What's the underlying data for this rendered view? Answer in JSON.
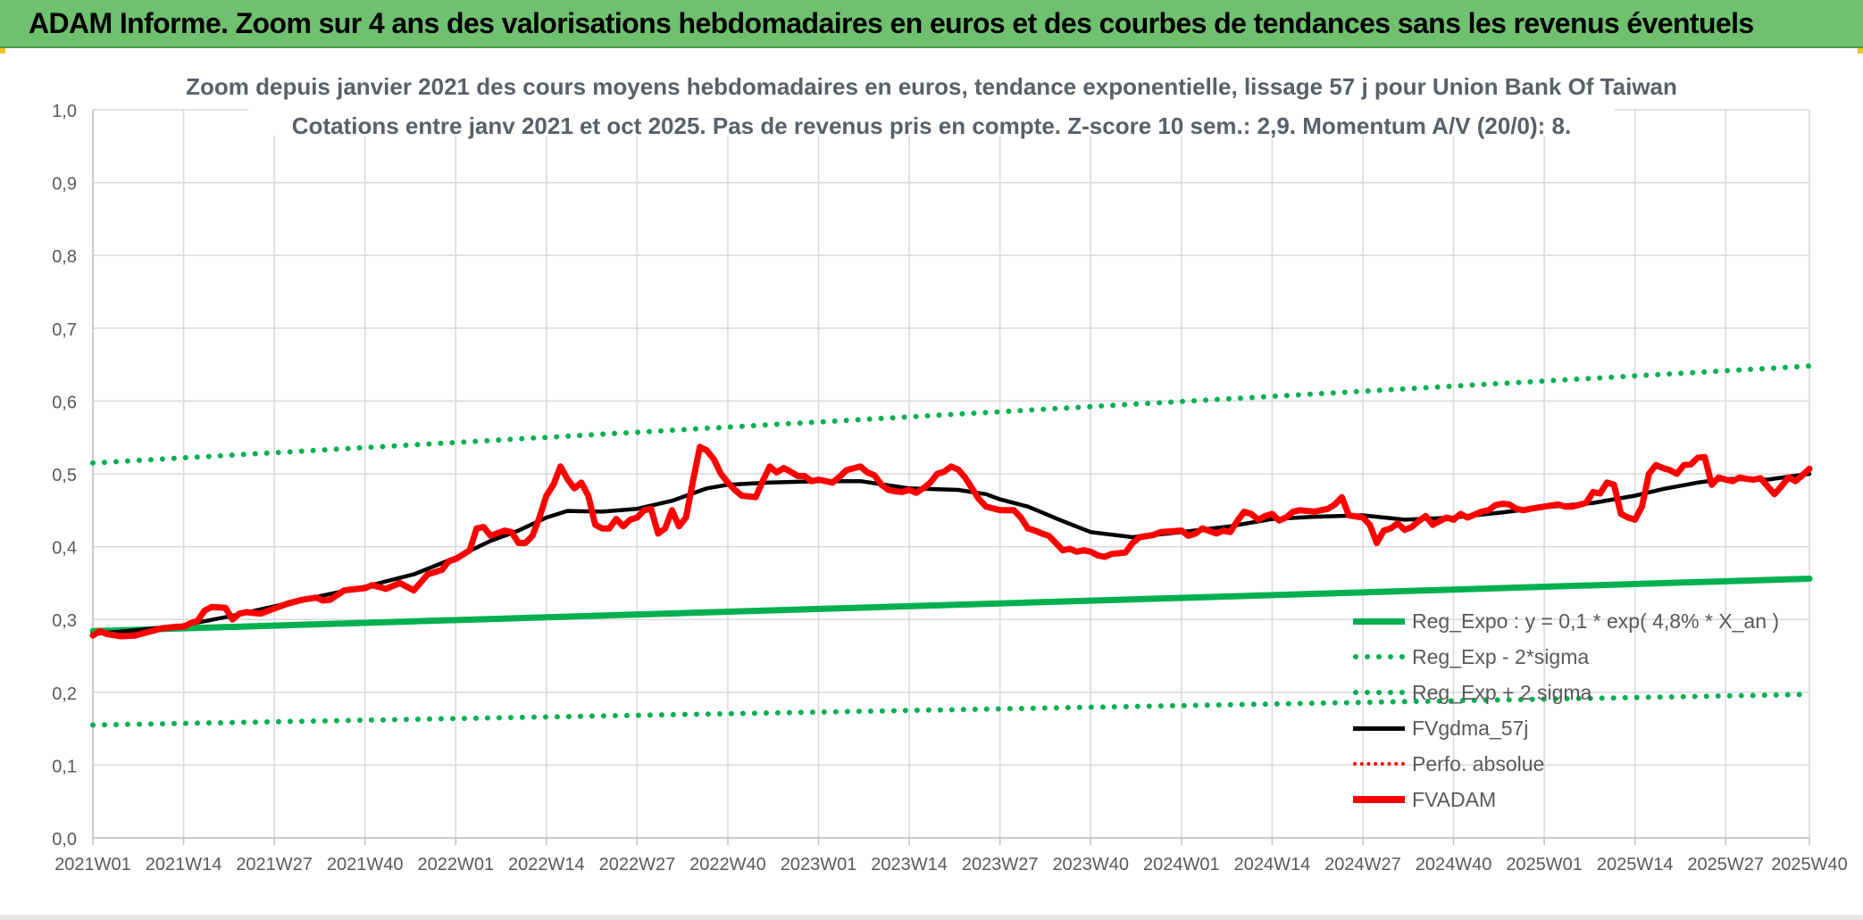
{
  "header": {
    "title": "ADAM Informe. Zoom sur 4 ans des valorisations hebdomadaires en euros et des courbes de tendances sans les revenus éventuels"
  },
  "chart_data": {
    "type": "line",
    "title": "Zoom depuis janvier 2021 des cours moyens hebdomadaires en euros, tendance exponentielle, lissage 57 j pour Union Bank Of Taiwan",
    "subtitle": "Cotations entre janv 2021 et oct 2025. Pas de revenus pris en compte. Z-score 10 sem.: 2,9. Momentum A/V (20/0): 8.",
    "xlabel": "",
    "ylabel": "",
    "ylim": [
      0,
      1
    ],
    "y_ticks": [
      "0,0",
      "0,1",
      "0,2",
      "0,3",
      "0,4",
      "0,5",
      "0,6",
      "0,7",
      "0,8",
      "0,9",
      "1,0"
    ],
    "x_range_weeks": [
      0,
      246
    ],
    "x_ticks": [
      {
        "label": "2021W01",
        "week": 0
      },
      {
        "label": "2021W14",
        "week": 13
      },
      {
        "label": "2021W27",
        "week": 26
      },
      {
        "label": "2021W40",
        "week": 39
      },
      {
        "label": "2022W01",
        "week": 52
      },
      {
        "label": "2022W14",
        "week": 65
      },
      {
        "label": "2022W27",
        "week": 78
      },
      {
        "label": "2022W40",
        "week": 91
      },
      {
        "label": "2023W01",
        "week": 104
      },
      {
        "label": "2023W14",
        "week": 117
      },
      {
        "label": "2023W27",
        "week": 130
      },
      {
        "label": "2023W40",
        "week": 143
      },
      {
        "label": "2024W01",
        "week": 156
      },
      {
        "label": "2024W14",
        "week": 169
      },
      {
        "label": "2024W27",
        "week": 182
      },
      {
        "label": "2024W40",
        "week": 195
      },
      {
        "label": "2025W01",
        "week": 208
      },
      {
        "label": "2025W14",
        "week": 221
      },
      {
        "label": "2025W27",
        "week": 234
      },
      {
        "label": "2025W40",
        "week": 246
      }
    ],
    "grid": true,
    "legend_position": "bottom-right",
    "series": [
      {
        "name": "Reg_Expo : y = 0,1 * exp( 4,8% *  X_an )",
        "style": "solid",
        "color": "#00b050",
        "points": [
          [
            0,
            0.284
          ],
          [
            246,
            0.356
          ]
        ]
      },
      {
        "name": "Reg_Exp - 2*sigma",
        "style": "dotted",
        "color": "#00b050",
        "points": [
          [
            0,
            0.155
          ],
          [
            246,
            0.197
          ]
        ]
      },
      {
        "name": "Reg_Exp + 2 sigma",
        "style": "dotted",
        "color": "#00b050",
        "points": [
          [
            0,
            0.515
          ],
          [
            246,
            0.648
          ]
        ]
      },
      {
        "name": "FVgdma_57j",
        "style": "solid",
        "color": "#000000",
        "points": [
          [
            0,
            0.28
          ],
          [
            6,
            0.285
          ],
          [
            13,
            0.292
          ],
          [
            20,
            0.305
          ],
          [
            26,
            0.318
          ],
          [
            33,
            0.333
          ],
          [
            39,
            0.345
          ],
          [
            46,
            0.362
          ],
          [
            52,
            0.385
          ],
          [
            57,
            0.408
          ],
          [
            61,
            0.422
          ],
          [
            65,
            0.44
          ],
          [
            68,
            0.449
          ],
          [
            73,
            0.448
          ],
          [
            78,
            0.452
          ],
          [
            83,
            0.463
          ],
          [
            88,
            0.48
          ],
          [
            91,
            0.485
          ],
          [
            97,
            0.488
          ],
          [
            104,
            0.49
          ],
          [
            110,
            0.49
          ],
          [
            117,
            0.48
          ],
          [
            124,
            0.478
          ],
          [
            128,
            0.472
          ],
          [
            130,
            0.465
          ],
          [
            134,
            0.455
          ],
          [
            139,
            0.435
          ],
          [
            143,
            0.42
          ],
          [
            149,
            0.413
          ],
          [
            156,
            0.42
          ],
          [
            163,
            0.428
          ],
          [
            169,
            0.438
          ],
          [
            175,
            0.441
          ],
          [
            182,
            0.443
          ],
          [
            188,
            0.437
          ],
          [
            195,
            0.44
          ],
          [
            202,
            0.447
          ],
          [
            208,
            0.454
          ],
          [
            215,
            0.46
          ],
          [
            221,
            0.47
          ],
          [
            225,
            0.479
          ],
          [
            230,
            0.488
          ],
          [
            234,
            0.493
          ],
          [
            240,
            0.492
          ],
          [
            246,
            0.5
          ]
        ]
      },
      {
        "name": "Perfo. absolue",
        "style": "dotted",
        "color": "#ff0000",
        "points": []
      },
      {
        "name": "FVADAM",
        "style": "solid",
        "color": "#ff0000",
        "points": [
          [
            0,
            0.278
          ],
          [
            1,
            0.284
          ],
          [
            2,
            0.28
          ],
          [
            4,
            0.277
          ],
          [
            6,
            0.278
          ],
          [
            8,
            0.283
          ],
          [
            10,
            0.288
          ],
          [
            12,
            0.29
          ],
          [
            13,
            0.29
          ],
          [
            14,
            0.295
          ],
          [
            15,
            0.298
          ],
          [
            16,
            0.312
          ],
          [
            17,
            0.317
          ],
          [
            19,
            0.316
          ],
          [
            20,
            0.3
          ],
          [
            21,
            0.308
          ],
          [
            22,
            0.31
          ],
          [
            24,
            0.308
          ],
          [
            26,
            0.315
          ],
          [
            28,
            0.322
          ],
          [
            30,
            0.327
          ],
          [
            32,
            0.33
          ],
          [
            33,
            0.326
          ],
          [
            34,
            0.327
          ],
          [
            36,
            0.34
          ],
          [
            38,
            0.342
          ],
          [
            39,
            0.343
          ],
          [
            40,
            0.347
          ],
          [
            42,
            0.342
          ],
          [
            44,
            0.35
          ],
          [
            46,
            0.34
          ],
          [
            48,
            0.362
          ],
          [
            50,
            0.368
          ],
          [
            51,
            0.38
          ],
          [
            52,
            0.383
          ],
          [
            54,
            0.395
          ],
          [
            55,
            0.425
          ],
          [
            56,
            0.427
          ],
          [
            57,
            0.415
          ],
          [
            59,
            0.422
          ],
          [
            60,
            0.42
          ],
          [
            61,
            0.405
          ],
          [
            62,
            0.405
          ],
          [
            63,
            0.415
          ],
          [
            64,
            0.44
          ],
          [
            65,
            0.47
          ],
          [
            66,
            0.485
          ],
          [
            67,
            0.51
          ],
          [
            68,
            0.493
          ],
          [
            69,
            0.48
          ],
          [
            70,
            0.488
          ],
          [
            71,
            0.47
          ],
          [
            72,
            0.43
          ],
          [
            73,
            0.425
          ],
          [
            74,
            0.425
          ],
          [
            75,
            0.438
          ],
          [
            76,
            0.428
          ],
          [
            77,
            0.437
          ],
          [
            78,
            0.44
          ],
          [
            79,
            0.45
          ],
          [
            80,
            0.452
          ],
          [
            81,
            0.418
          ],
          [
            82,
            0.425
          ],
          [
            83,
            0.45
          ],
          [
            84,
            0.428
          ],
          [
            85,
            0.44
          ],
          [
            86,
            0.49
          ],
          [
            87,
            0.537
          ],
          [
            88,
            0.532
          ],
          [
            89,
            0.52
          ],
          [
            90,
            0.5
          ],
          [
            91,
            0.488
          ],
          [
            92,
            0.478
          ],
          [
            93,
            0.47
          ],
          [
            95,
            0.468
          ],
          [
            96,
            0.49
          ],
          [
            97,
            0.51
          ],
          [
            98,
            0.502
          ],
          [
            99,
            0.508
          ],
          [
            100,
            0.503
          ],
          [
            101,
            0.497
          ],
          [
            102,
            0.497
          ],
          [
            103,
            0.49
          ],
          [
            104,
            0.492
          ],
          [
            106,
            0.488
          ],
          [
            107,
            0.496
          ],
          [
            108,
            0.505
          ],
          [
            110,
            0.51
          ],
          [
            111,
            0.502
          ],
          [
            112,
            0.498
          ],
          [
            113,
            0.485
          ],
          [
            114,
            0.478
          ],
          [
            115,
            0.476
          ],
          [
            116,
            0.475
          ],
          [
            117,
            0.478
          ],
          [
            118,
            0.474
          ],
          [
            119,
            0.48
          ],
          [
            120,
            0.488
          ],
          [
            121,
            0.5
          ],
          [
            122,
            0.503
          ],
          [
            123,
            0.51
          ],
          [
            124,
            0.506
          ],
          [
            125,
            0.495
          ],
          [
            126,
            0.48
          ],
          [
            127,
            0.465
          ],
          [
            128,
            0.455
          ],
          [
            130,
            0.45
          ],
          [
            132,
            0.45
          ],
          [
            133,
            0.44
          ],
          [
            134,
            0.425
          ],
          [
            135,
            0.422
          ],
          [
            136,
            0.418
          ],
          [
            137,
            0.415
          ],
          [
            138,
            0.405
          ],
          [
            139,
            0.395
          ],
          [
            140,
            0.397
          ],
          [
            141,
            0.393
          ],
          [
            142,
            0.395
          ],
          [
            143,
            0.393
          ],
          [
            144,
            0.388
          ],
          [
            145,
            0.386
          ],
          [
            146,
            0.39
          ],
          [
            148,
            0.392
          ],
          [
            149,
            0.405
          ],
          [
            150,
            0.413
          ],
          [
            152,
            0.416
          ],
          [
            153,
            0.42
          ],
          [
            156,
            0.422
          ],
          [
            157,
            0.415
          ],
          [
            158,
            0.418
          ],
          [
            159,
            0.425
          ],
          [
            161,
            0.418
          ],
          [
            162,
            0.422
          ],
          [
            163,
            0.42
          ],
          [
            164,
            0.435
          ],
          [
            165,
            0.448
          ],
          [
            166,
            0.445
          ],
          [
            167,
            0.437
          ],
          [
            168,
            0.442
          ],
          [
            169,
            0.445
          ],
          [
            170,
            0.436
          ],
          [
            171,
            0.44
          ],
          [
            172,
            0.448
          ],
          [
            173,
            0.45
          ],
          [
            175,
            0.448
          ],
          [
            176,
            0.45
          ],
          [
            177,
            0.452
          ],
          [
            178,
            0.458
          ],
          [
            179,
            0.468
          ],
          [
            180,
            0.443
          ],
          [
            182,
            0.44
          ],
          [
            183,
            0.43
          ],
          [
            184,
            0.405
          ],
          [
            185,
            0.422
          ],
          [
            186,
            0.425
          ],
          [
            187,
            0.432
          ],
          [
            188,
            0.423
          ],
          [
            189,
            0.427
          ],
          [
            190,
            0.435
          ],
          [
            191,
            0.442
          ],
          [
            192,
            0.43
          ],
          [
            194,
            0.44
          ],
          [
            195,
            0.437
          ],
          [
            196,
            0.445
          ],
          [
            197,
            0.44
          ],
          [
            199,
            0.448
          ],
          [
            200,
            0.45
          ],
          [
            201,
            0.457
          ],
          [
            202,
            0.459
          ],
          [
            203,
            0.458
          ],
          [
            204,
            0.452
          ],
          [
            205,
            0.45
          ],
          [
            206,
            0.452
          ],
          [
            208,
            0.455
          ],
          [
            210,
            0.458
          ],
          [
            211,
            0.455
          ],
          [
            212,
            0.455
          ],
          [
            214,
            0.46
          ],
          [
            215,
            0.475
          ],
          [
            216,
            0.473
          ],
          [
            217,
            0.488
          ],
          [
            218,
            0.485
          ],
          [
            219,
            0.445
          ],
          [
            220,
            0.44
          ],
          [
            221,
            0.437
          ],
          [
            222,
            0.455
          ],
          [
            223,
            0.5
          ],
          [
            224,
            0.512
          ],
          [
            225,
            0.508
          ],
          [
            226,
            0.505
          ],
          [
            227,
            0.5
          ],
          [
            228,
            0.512
          ],
          [
            229,
            0.513
          ],
          [
            230,
            0.522
          ],
          [
            231,
            0.523
          ],
          [
            232,
            0.485
          ],
          [
            233,
            0.495
          ],
          [
            234,
            0.492
          ],
          [
            235,
            0.49
          ],
          [
            236,
            0.495
          ],
          [
            237,
            0.493
          ],
          [
            238,
            0.492
          ],
          [
            239,
            0.494
          ],
          [
            240,
            0.483
          ],
          [
            241,
            0.472
          ],
          [
            242,
            0.483
          ],
          [
            243,
            0.495
          ],
          [
            244,
            0.49
          ],
          [
            245,
            0.498
          ],
          [
            246,
            0.507
          ]
        ]
      }
    ]
  }
}
